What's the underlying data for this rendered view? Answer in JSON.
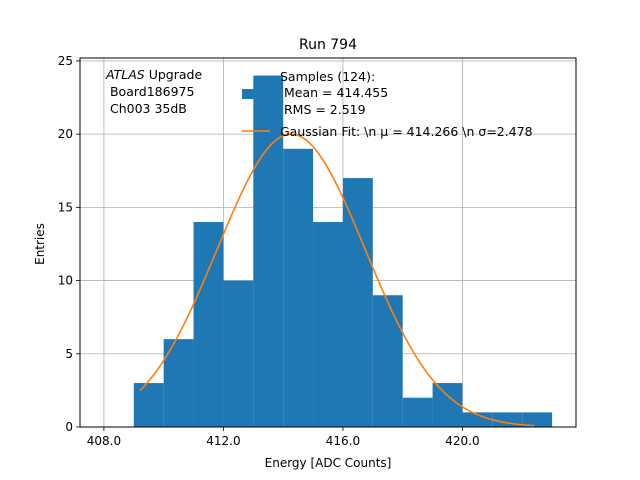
{
  "chart_data": {
    "type": "bar",
    "title": "Run 794",
    "xlabel": "Energy [ADC Counts]",
    "ylabel": "Entries",
    "xlim": [
      407.2,
      423.8
    ],
    "ylim": [
      0,
      25.2
    ],
    "grid": true,
    "xticks": [
      408,
      412,
      416,
      420
    ],
    "xtick_labels": [
      "408.0",
      "412.0",
      "416.0",
      "420.0"
    ],
    "yticks": [
      0,
      5,
      10,
      15,
      20,
      25
    ],
    "ytick_labels": [
      "0",
      "5",
      "10",
      "15",
      "20",
      "25"
    ],
    "bar_color": "#1f77b4",
    "fit_color": "#ff7f0e",
    "bins": [
      {
        "x0": 409,
        "x1": 410,
        "count": 3
      },
      {
        "x0": 410,
        "x1": 411,
        "count": 6
      },
      {
        "x0": 411,
        "x1": 412,
        "count": 14
      },
      {
        "x0": 412,
        "x1": 413,
        "count": 10
      },
      {
        "x0": 413,
        "x1": 414,
        "count": 24
      },
      {
        "x0": 414,
        "x1": 415,
        "count": 19
      },
      {
        "x0": 415,
        "x1": 416,
        "count": 14
      },
      {
        "x0": 416,
        "x1": 417,
        "count": 17
      },
      {
        "x0": 417,
        "x1": 418,
        "count": 9
      },
      {
        "x0": 418,
        "x1": 419,
        "count": 2
      },
      {
        "x0": 419,
        "x1": 420,
        "count": 3
      },
      {
        "x0": 420,
        "x1": 421,
        "count": 1
      },
      {
        "x0": 421,
        "x1": 422,
        "count": 1
      },
      {
        "x0": 422,
        "x1": 423,
        "count": 1
      }
    ],
    "fit": {
      "amplitude": 20.0,
      "mean": 414.266,
      "sigma": 2.478,
      "x_range": [
        409.2,
        422.4
      ]
    },
    "legend": {
      "placement": "top",
      "samples_lines": [
        "Samples (124):",
        " Mean = 414.455",
        " RMS = 2.519"
      ],
      "fit_label": "Gaussian Fit: \\n μ = 414.266 \\n σ=2.478"
    },
    "annotation": {
      "italic": "ATLAS",
      "rest": " Upgrade",
      "line2": " Board186975",
      "line3": " Ch003 35dB"
    }
  }
}
